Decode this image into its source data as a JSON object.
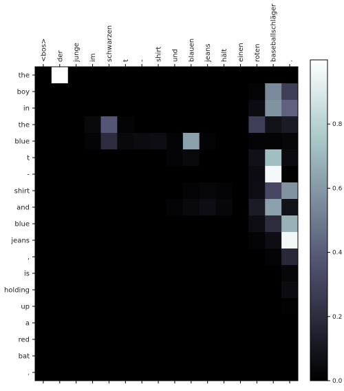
{
  "chart_data": {
    "type": "heatmap",
    "title": "",
    "xlabel": "",
    "ylabel": "",
    "x_labels": [
      "<bos>",
      "der",
      "junge",
      "im",
      "schwarzen",
      "t",
      "-",
      "shirt",
      "und",
      "blauen",
      "jeans",
      "hält",
      "einen",
      "roten",
      "baseballschläger",
      "."
    ],
    "y_labels": [
      "the",
      "boy",
      "in",
      "the",
      "blue",
      "t",
      "-",
      "shirt",
      "and",
      "blue",
      "jeans",
      ",",
      "is",
      "holding",
      "up",
      "a",
      "red",
      "bat",
      "."
    ],
    "colorbar": {
      "colormap": "bone",
      "range": [
        0.0,
        1.0
      ],
      "ticks": [
        0.0,
        0.2,
        0.4,
        0.6,
        0.8
      ],
      "tick_labels": [
        "0.0",
        "0.2",
        "0.4",
        "0.6",
        "0.8"
      ]
    },
    "values": [
      [
        0,
        1.0,
        0,
        0,
        0,
        0,
        0,
        0,
        0,
        0,
        0,
        0,
        0,
        0,
        0,
        0
      ],
      [
        0,
        0,
        0,
        0,
        0,
        0,
        0,
        0,
        0,
        0,
        0,
        0,
        0,
        0.02,
        0.55,
        0.28
      ],
      [
        0,
        0,
        0,
        0,
        0,
        0,
        0,
        0,
        0,
        0,
        0,
        0,
        0,
        0.05,
        0.58,
        0.42
      ],
      [
        0,
        0,
        0,
        0.04,
        0.38,
        0.02,
        0,
        0,
        0,
        0,
        0,
        0,
        0,
        0.28,
        0.08,
        0.12
      ],
      [
        0,
        0,
        0,
        0.02,
        0.2,
        0.04,
        0.05,
        0.06,
        0.02,
        0.62,
        0.02,
        0,
        0,
        0.02,
        0.02,
        0.03
      ],
      [
        0,
        0,
        0,
        0,
        0,
        0,
        0,
        0,
        0.02,
        0.04,
        0,
        0,
        0,
        0.07,
        0.72,
        0.05
      ],
      [
        0,
        0,
        0,
        0,
        0,
        0,
        0,
        0,
        0,
        0,
        0,
        0,
        0,
        0.05,
        0.97,
        0.01
      ],
      [
        0,
        0,
        0,
        0,
        0,
        0,
        0,
        0,
        0,
        0.02,
        0.03,
        0.02,
        0,
        0.06,
        0.32,
        0.58
      ],
      [
        0,
        0,
        0,
        0,
        0,
        0,
        0,
        0,
        0.02,
        0.04,
        0.06,
        0.03,
        0,
        0.12,
        0.62,
        0.08
      ],
      [
        0,
        0,
        0,
        0,
        0,
        0,
        0,
        0,
        0,
        0,
        0,
        0,
        0,
        0.06,
        0.2,
        0.68
      ],
      [
        0,
        0,
        0,
        0,
        0,
        0,
        0,
        0,
        0,
        0,
        0,
        0,
        0,
        0.02,
        0.06,
        0.96
      ],
      [
        0,
        0,
        0,
        0,
        0,
        0,
        0,
        0,
        0,
        0,
        0,
        0,
        0,
        0,
        0.02,
        0.18
      ],
      [
        0,
        0,
        0,
        0,
        0,
        0,
        0,
        0,
        0,
        0,
        0,
        0,
        0,
        0,
        0,
        0.03
      ],
      [
        0,
        0,
        0,
        0,
        0,
        0,
        0,
        0,
        0,
        0,
        0,
        0,
        0,
        0,
        0,
        0.05
      ],
      [
        0,
        0,
        0,
        0,
        0,
        0,
        0,
        0,
        0,
        0,
        0,
        0,
        0,
        0,
        0,
        0.01
      ],
      [
        0,
        0,
        0,
        0,
        0,
        0,
        0,
        0,
        0,
        0,
        0,
        0,
        0,
        0,
        0,
        0
      ],
      [
        0,
        0,
        0,
        0,
        0,
        0,
        0,
        0,
        0,
        0,
        0,
        0,
        0,
        0,
        0,
        0
      ],
      [
        0,
        0,
        0,
        0,
        0,
        0,
        0,
        0,
        0,
        0,
        0,
        0,
        0,
        0,
        0,
        0
      ],
      [
        0,
        0,
        0,
        0,
        0,
        0,
        0,
        0,
        0,
        0,
        0,
        0,
        0,
        0,
        0,
        0
      ]
    ]
  }
}
